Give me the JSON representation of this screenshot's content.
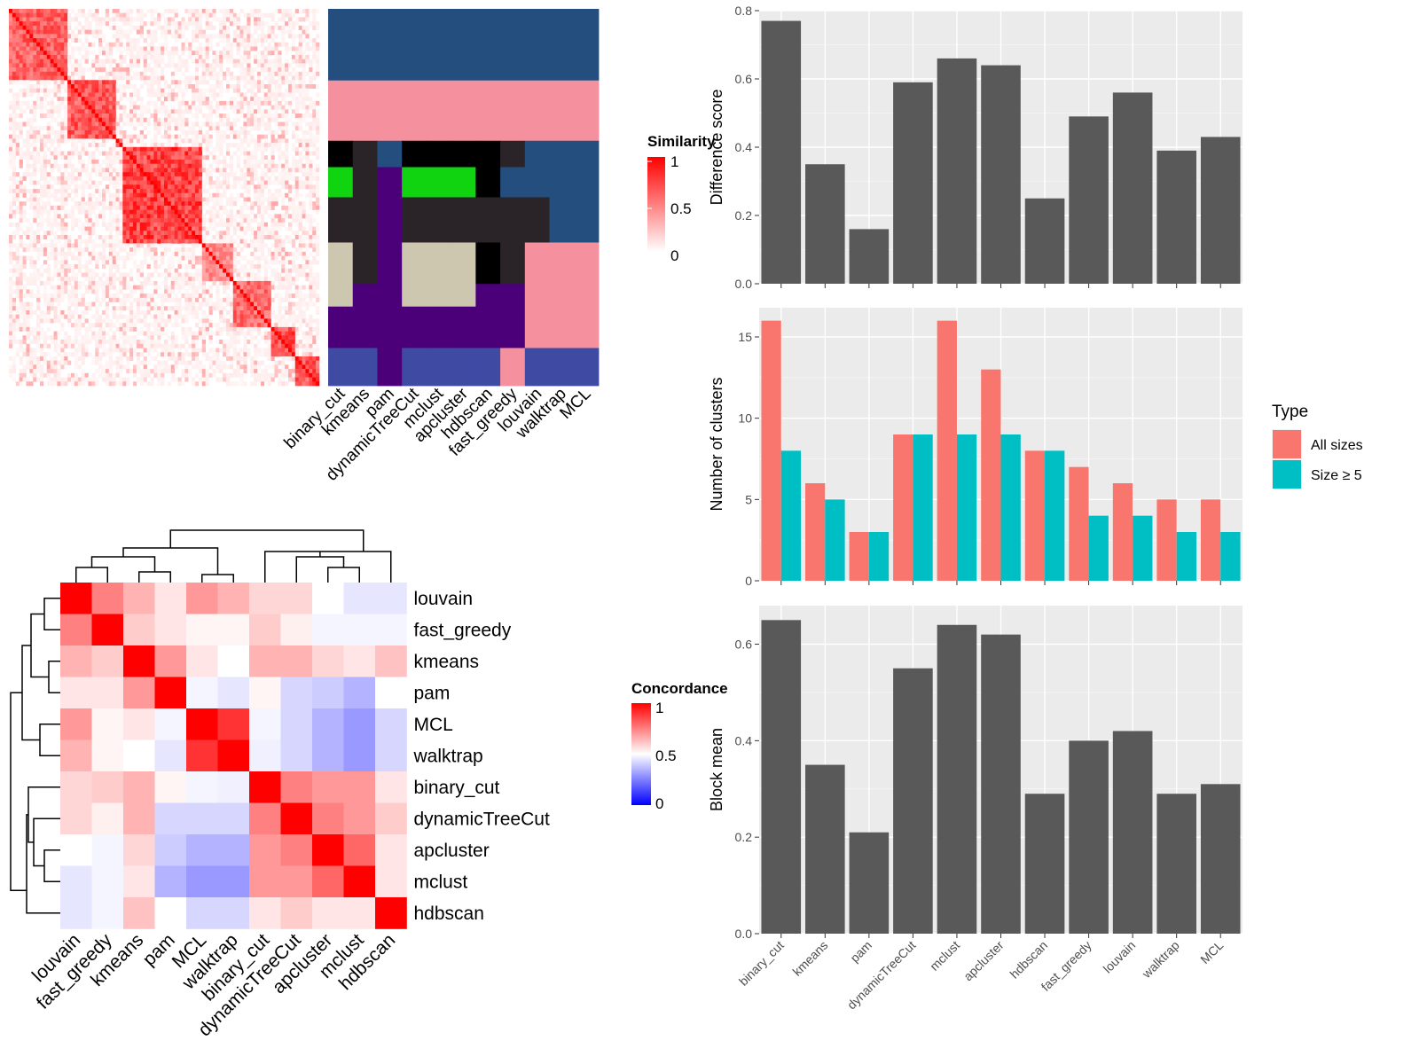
{
  "chart_data": [
    {
      "type": "heatmap",
      "name": "similarity-heatmap",
      "legend_title": "Similarity",
      "legend_ticks": [
        "1",
        "0.5",
        "0"
      ],
      "colors": {
        "low": "#ffffff",
        "high": "#ff0000"
      },
      "blocks": [
        {
          "start": 0.0,
          "end": 0.19,
          "sim": 0.8
        },
        {
          "start": 0.19,
          "end": 0.35,
          "sim": 0.85
        },
        {
          "start": 0.35,
          "end": 0.37,
          "sim": 0.7
        },
        {
          "start": 0.37,
          "end": 0.62,
          "sim": 0.95
        },
        {
          "start": 0.62,
          "end": 0.72,
          "sim": 0.6
        },
        {
          "start": 0.72,
          "end": 0.84,
          "sim": 0.75
        },
        {
          "start": 0.84,
          "end": 0.92,
          "sim": 0.9
        },
        {
          "start": 0.92,
          "end": 1.0,
          "sim": 0.85
        }
      ]
    },
    {
      "type": "heatmap",
      "name": "cluster-assignment-matrix",
      "columns": [
        "binary_cut",
        "kmeans",
        "pam",
        "dynamicTreeCut",
        "mclust",
        "apcluster",
        "hdbscan",
        "fast_greedy",
        "louvain",
        "walktrap",
        "MCL"
      ],
      "colors": {
        "blue": "#234e7e",
        "pink": "#f5919e",
        "purple": "#4b0079",
        "green": "#10d410",
        "dark": "#2a2428",
        "beige": "#cdc7af",
        "lavender": "#3f4ba3",
        "black": "#000000"
      },
      "bands": [
        {
          "start": 0.0,
          "end": 0.19,
          "cells": [
            "blue",
            "blue",
            "blue",
            "blue",
            "blue",
            "blue",
            "blue",
            "blue",
            "blue",
            "blue",
            "blue"
          ]
        },
        {
          "start": 0.19,
          "end": 0.35,
          "cells": [
            "pink",
            "pink",
            "pink",
            "pink",
            "pink",
            "pink",
            "pink",
            "pink",
            "pink",
            "pink",
            "pink"
          ]
        },
        {
          "start": 0.35,
          "end": 0.42,
          "cells": [
            "black",
            "dark",
            "blue",
            "black",
            "black",
            "black",
            "black",
            "dark",
            "blue",
            "blue",
            "blue"
          ]
        },
        {
          "start": 0.42,
          "end": 0.5,
          "cells": [
            "green",
            "dark",
            "purple",
            "green",
            "green",
            "green",
            "black",
            "blue",
            "blue",
            "blue",
            "blue"
          ]
        },
        {
          "start": 0.5,
          "end": 0.62,
          "cells": [
            "dark",
            "dark",
            "purple",
            "dark",
            "dark",
            "dark",
            "dark",
            "dark",
            "dark",
            "blue",
            "blue"
          ]
        },
        {
          "start": 0.62,
          "end": 0.73,
          "cells": [
            "beige",
            "dark",
            "purple",
            "beige",
            "beige",
            "beige",
            "black",
            "dark",
            "pink",
            "pink",
            "pink"
          ]
        },
        {
          "start": 0.73,
          "end": 0.79,
          "cells": [
            "beige",
            "purple",
            "purple",
            "beige",
            "beige",
            "beige",
            "purple",
            "purple",
            "pink",
            "pink",
            "pink"
          ]
        },
        {
          "start": 0.79,
          "end": 0.9,
          "cells": [
            "purple",
            "purple",
            "purple",
            "purple",
            "purple",
            "purple",
            "purple",
            "purple",
            "pink",
            "pink",
            "pink"
          ]
        },
        {
          "start": 0.9,
          "end": 1.0,
          "cells": [
            "lavender",
            "lavender",
            "purple",
            "lavender",
            "lavender",
            "lavender",
            "lavender",
            "pink",
            "lavender",
            "lavender",
            "lavender"
          ]
        }
      ]
    },
    {
      "type": "heatmap",
      "name": "concordance-heatmap",
      "legend_title": "Concordance",
      "legend_ticks": [
        "1",
        "0.5",
        "0"
      ],
      "colors": {
        "low": "#0000ff",
        "mid": "#ffffff",
        "high": "#ff0000"
      },
      "labels": [
        "louvain",
        "fast_greedy",
        "kmeans",
        "pam",
        "MCL",
        "walktrap",
        "binary_cut",
        "dynamicTreeCut",
        "apcluster",
        "mclust",
        "hdbscan"
      ],
      "matrix": [
        [
          1.0,
          0.75,
          0.65,
          0.55,
          0.7,
          0.65,
          0.58,
          0.58,
          0.5,
          0.45,
          0.45
        ],
        [
          0.75,
          1.0,
          0.6,
          0.55,
          0.52,
          0.52,
          0.6,
          0.53,
          0.48,
          0.48,
          0.48
        ],
        [
          0.65,
          0.6,
          1.0,
          0.7,
          0.55,
          0.5,
          0.65,
          0.65,
          0.58,
          0.55,
          0.62
        ],
        [
          0.55,
          0.55,
          0.7,
          1.0,
          0.48,
          0.45,
          0.52,
          0.42,
          0.4,
          0.35,
          0.5
        ],
        [
          0.7,
          0.52,
          0.55,
          0.48,
          1.0,
          0.9,
          0.48,
          0.42,
          0.35,
          0.3,
          0.42
        ],
        [
          0.65,
          0.52,
          0.5,
          0.45,
          0.9,
          1.0,
          0.47,
          0.42,
          0.35,
          0.3,
          0.42
        ],
        [
          0.58,
          0.6,
          0.65,
          0.52,
          0.48,
          0.47,
          1.0,
          0.75,
          0.7,
          0.7,
          0.55
        ],
        [
          0.58,
          0.53,
          0.65,
          0.42,
          0.42,
          0.42,
          0.75,
          1.0,
          0.75,
          0.7,
          0.6
        ],
        [
          0.5,
          0.48,
          0.58,
          0.4,
          0.35,
          0.35,
          0.7,
          0.75,
          1.0,
          0.8,
          0.55
        ],
        [
          0.45,
          0.48,
          0.55,
          0.35,
          0.3,
          0.3,
          0.7,
          0.7,
          0.8,
          1.0,
          0.55
        ],
        [
          0.45,
          0.48,
          0.62,
          0.5,
          0.42,
          0.42,
          0.55,
          0.6,
          0.55,
          0.55,
          1.0
        ]
      ]
    },
    {
      "type": "bar",
      "name": "difference-score",
      "categories": [
        "binary_cut",
        "kmeans",
        "pam",
        "dynamicTreeCut",
        "mclust",
        "apcluster",
        "hdbscan",
        "fast_greedy",
        "louvain",
        "walktrap",
        "MCL"
      ],
      "values": [
        0.77,
        0.35,
        0.16,
        0.59,
        0.66,
        0.64,
        0.25,
        0.49,
        0.56,
        0.39,
        0.43
      ],
      "ylabel": "Difference score",
      "ylim": [
        0,
        0.8
      ],
      "yticks": [
        "0.0",
        "0.2",
        "0.4",
        "0.6",
        "0.8"
      ],
      "yticks_num": [
        0,
        0.2,
        0.4,
        0.6,
        0.8
      ],
      "bar_color": "#595959"
    },
    {
      "type": "bar",
      "name": "number-of-clusters",
      "categories": [
        "binary_cut",
        "kmeans",
        "pam",
        "dynamicTreeCut",
        "mclust",
        "apcluster",
        "hdbscan",
        "fast_greedy",
        "louvain",
        "walktrap",
        "MCL"
      ],
      "series": [
        {
          "name": "All sizes",
          "values": [
            16,
            6,
            3,
            9,
            16,
            13,
            8,
            7,
            6,
            5,
            5
          ],
          "color": "#f8766d"
        },
        {
          "name": "Size ≥ 5",
          "values": [
            8,
            5,
            3,
            9,
            9,
            9,
            8,
            4,
            4,
            3,
            3
          ],
          "color": "#00bfc4"
        }
      ],
      "ylabel": "Number of clusters",
      "ylim": [
        0,
        16.8
      ],
      "yticks": [
        "0",
        "5",
        "10",
        "15"
      ],
      "yticks_num": [
        0,
        5,
        10,
        15
      ],
      "legend_title": "Type"
    },
    {
      "type": "bar",
      "name": "block-mean",
      "categories": [
        "binary_cut",
        "kmeans",
        "pam",
        "dynamicTreeCut",
        "mclust",
        "apcluster",
        "hdbscan",
        "fast_greedy",
        "louvain",
        "walktrap",
        "MCL"
      ],
      "values": [
        0.65,
        0.35,
        0.21,
        0.55,
        0.64,
        0.62,
        0.29,
        0.4,
        0.42,
        0.29,
        0.31
      ],
      "ylabel": "Block mean",
      "ylim": [
        0,
        0.68
      ],
      "yticks": [
        "0.0",
        "0.2",
        "0.4",
        "0.6"
      ],
      "yticks_num": [
        0,
        0.2,
        0.4,
        0.6
      ],
      "bar_color": "#595959"
    }
  ]
}
